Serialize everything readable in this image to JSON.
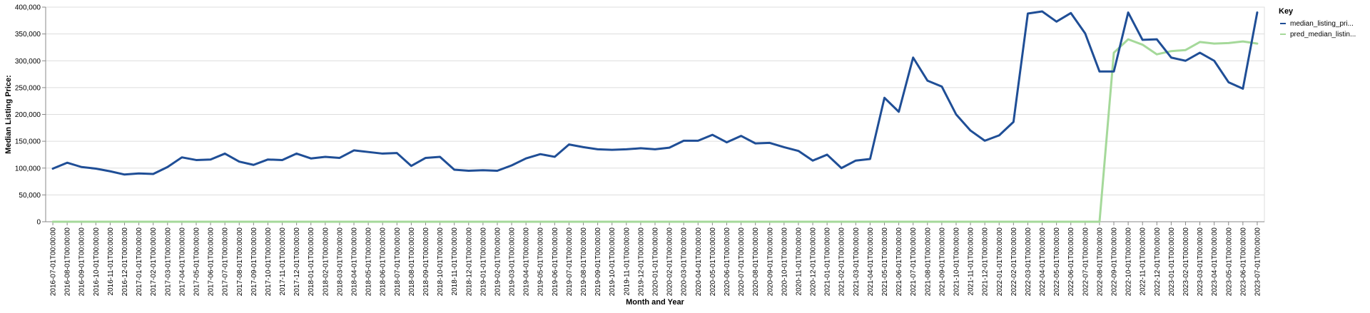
{
  "chart_data": {
    "type": "line",
    "xlabel": "Month and Year",
    "ylabel": "Median Listing Price:",
    "ylim": [
      0,
      400000
    ],
    "yticks": [
      "0",
      "50,000",
      "100,000",
      "150,000",
      "200,000",
      "250,000",
      "300,000",
      "350,000",
      "400,000"
    ],
    "ytick_values": [
      0,
      50000,
      100000,
      150000,
      200000,
      250000,
      300000,
      350000,
      400000
    ],
    "grid": true,
    "legend": {
      "title": "Key",
      "placement": "top-right"
    },
    "x": [
      "2016-07-01T00:00:00",
      "2016-08-01T00:00:00",
      "2016-09-01T00:00:00",
      "2016-10-01T00:00:00",
      "2016-11-01T00:00:00",
      "2016-12-01T00:00:00",
      "2017-01-01T00:00:00",
      "2017-02-01T00:00:00",
      "2017-03-01T00:00:00",
      "2017-04-01T00:00:00",
      "2017-05-01T00:00:00",
      "2017-06-01T00:00:00",
      "2017-07-01T00:00:00",
      "2017-08-01T00:00:00",
      "2017-09-01T00:00:00",
      "2017-10-01T00:00:00",
      "2017-11-01T00:00:00",
      "2017-12-01T00:00:00",
      "2018-01-01T00:00:00",
      "2018-02-01T00:00:00",
      "2018-03-01T00:00:00",
      "2018-04-01T00:00:00",
      "2018-05-01T00:00:00",
      "2018-06-01T00:00:00",
      "2018-07-01T00:00:00",
      "2018-08-01T00:00:00",
      "2018-09-01T00:00:00",
      "2018-10-01T00:00:00",
      "2018-11-01T00:00:00",
      "2018-12-01T00:00:00",
      "2019-01-01T00:00:00",
      "2019-02-01T00:00:00",
      "2019-03-01T00:00:00",
      "2019-04-01T00:00:00",
      "2019-05-01T00:00:00",
      "2019-06-01T00:00:00",
      "2019-07-01T00:00:00",
      "2019-08-01T00:00:00",
      "2019-09-01T00:00:00",
      "2019-10-01T00:00:00",
      "2019-11-01T00:00:00",
      "2019-12-01T00:00:00",
      "2020-01-01T00:00:00",
      "2020-02-01T00:00:00",
      "2020-03-01T00:00:00",
      "2020-04-01T00:00:00",
      "2020-05-01T00:00:00",
      "2020-06-01T00:00:00",
      "2020-07-01T00:00:00",
      "2020-08-01T00:00:00",
      "2020-09-01T00:00:00",
      "2020-10-01T00:00:00",
      "2020-11-01T00:00:00",
      "2020-12-01T00:00:00",
      "2021-01-01T00:00:00",
      "2021-02-01T00:00:00",
      "2021-03-01T00:00:00",
      "2021-04-01T00:00:00",
      "2021-05-01T00:00:00",
      "2021-06-01T00:00:00",
      "2021-07-01T00:00:00",
      "2021-08-01T00:00:00",
      "2021-09-01T00:00:00",
      "2021-10-01T00:00:00",
      "2021-11-01T00:00:00",
      "2021-12-01T00:00:00",
      "2022-01-01T00:00:00",
      "2022-02-01T00:00:00",
      "2022-03-01T00:00:00",
      "2022-04-01T00:00:00",
      "2022-05-01T00:00:00",
      "2022-06-01T00:00:00",
      "2022-07-01T00:00:00",
      "2022-08-01T00:00:00",
      "2022-09-01T00:00:00",
      "2022-10-01T00:00:00",
      "2022-11-01T00:00:00",
      "2022-12-01T00:00:00",
      "2023-01-01T00:00:00",
      "2023-02-01T00:00:00",
      "2023-03-01T00:00:00",
      "2023-04-01T00:00:00",
      "2023-05-01T00:00:00",
      "2023-06-01T00:00:00",
      "2023-07-01T00:00:00"
    ],
    "series": [
      {
        "name": "median_listing_pri...",
        "color": "#1f4e96",
        "values": [
          99000,
          110000,
          102000,
          99000,
          94000,
          88000,
          90000,
          89000,
          102000,
          120000,
          115000,
          116000,
          127000,
          112000,
          106000,
          116000,
          115000,
          127000,
          118000,
          121000,
          119000,
          133000,
          130000,
          127000,
          128000,
          104000,
          119000,
          121000,
          97000,
          95000,
          96000,
          95000,
          105000,
          118000,
          126000,
          121000,
          144000,
          139000,
          135000,
          134000,
          135000,
          137000,
          135000,
          138000,
          151000,
          151000,
          162000,
          148000,
          160000,
          146000,
          147000,
          139000,
          132000,
          114000,
          125000,
          100000,
          114000,
          117000,
          231000,
          205000,
          306000,
          263000,
          252000,
          200000,
          170000,
          151000,
          161000,
          186000,
          388000,
          392000,
          373000,
          389000,
          351000,
          280000,
          280000,
          390000,
          339000,
          340000,
          306000,
          300000,
          315000,
          300000,
          260000,
          248000,
          390000
        ]
      },
      {
        "name": "pred_median_listin...",
        "color": "#a5d99a",
        "values": [
          0,
          0,
          0,
          0,
          0,
          0,
          0,
          0,
          0,
          0,
          0,
          0,
          0,
          0,
          0,
          0,
          0,
          0,
          0,
          0,
          0,
          0,
          0,
          0,
          0,
          0,
          0,
          0,
          0,
          0,
          0,
          0,
          0,
          0,
          0,
          0,
          0,
          0,
          0,
          0,
          0,
          0,
          0,
          0,
          0,
          0,
          0,
          0,
          0,
          0,
          0,
          0,
          0,
          0,
          0,
          0,
          0,
          0,
          0,
          0,
          0,
          0,
          0,
          0,
          0,
          0,
          0,
          0,
          0,
          0,
          0,
          0,
          0,
          0,
          315000,
          340000,
          330000,
          312000,
          318000,
          320000,
          335000,
          332000,
          333000,
          336000,
          332000
        ]
      }
    ]
  }
}
